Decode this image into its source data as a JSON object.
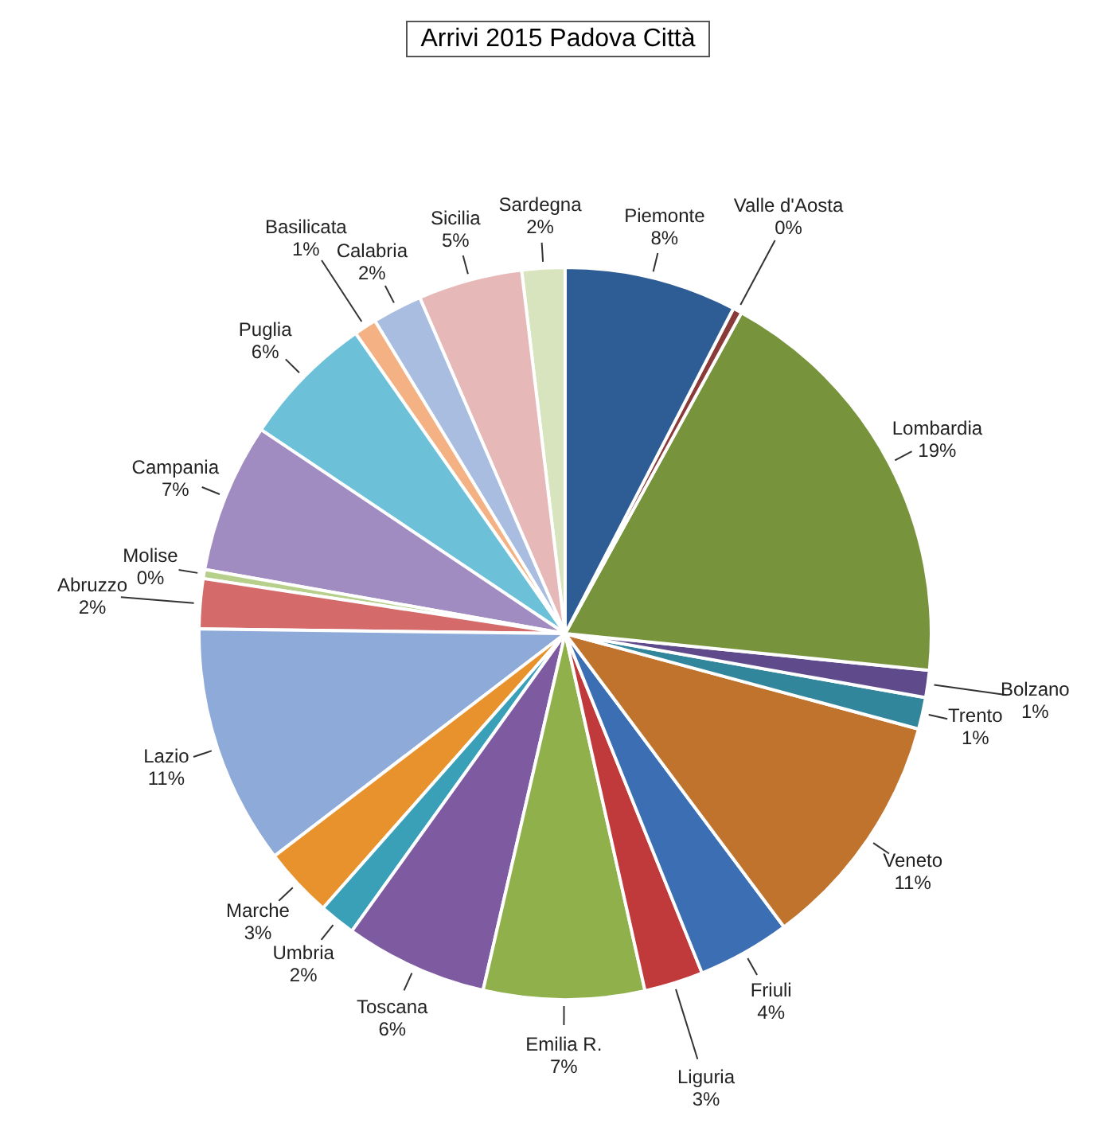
{
  "chart_data": {
    "type": "pie",
    "title": "Arrivi 2015 Padova Città",
    "categories": [
      "Sardegna",
      "Sicilia",
      "Calabria",
      "Basilicata",
      "Puglia",
      "Campania",
      "Molise",
      "Abruzzo",
      "Lazio",
      "Marche",
      "Umbria",
      "Toscana",
      "Emilia R.",
      "Liguria",
      "Friuli",
      "Veneto",
      "Trento",
      "Bolzano",
      "Lombardia",
      "Valle d'Aosta",
      "Piemonte"
    ],
    "values": [
      1.9,
      4.6,
      2.2,
      1.0,
      5.9,
      6.6,
      0.4,
      2.2,
      10.6,
      3.1,
      1.6,
      6.3,
      7.1,
      2.6,
      4.1,
      10.6,
      1.4,
      1.2,
      18.6,
      0.4,
      7.6
    ],
    "value_labels": [
      "2%",
      "5%",
      "2%",
      "1%",
      "6%",
      "7%",
      "0%",
      "2%",
      "11%",
      "3%",
      "2%",
      "6%",
      "7%",
      "3%",
      "4%",
      "11%",
      "1%",
      "1%",
      "19%",
      "0%",
      "8%"
    ],
    "colors": [
      "#d7e4bd",
      "#e6b8b7",
      "#a9bde0",
      "#f4b183",
      "#6cc0d8",
      "#a08cc0",
      "#b6d08c",
      "#d46a6a",
      "#8eaad8",
      "#e8922e",
      "#3aa0b8",
      "#7e5aa0",
      "#8fb04a",
      "#c0393b",
      "#3c6eb4",
      "#c0732d",
      "#31869b",
      "#5f4a8b",
      "#77933c",
      "#8b3a3a",
      "#2e5d96"
    ]
  }
}
